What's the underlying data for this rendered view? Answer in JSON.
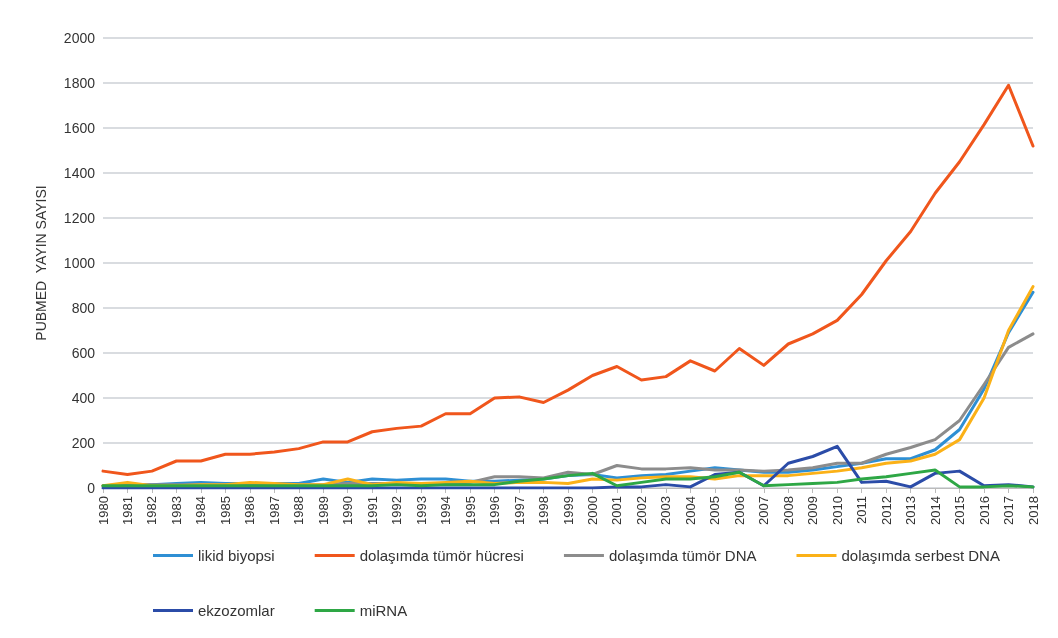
{
  "chart_data": {
    "type": "line",
    "ylabel": "PUBMED  YAYIN SAYISI",
    "categories": [
      "1980",
      "1981",
      "1982",
      "1983",
      "1984",
      "1985",
      "1986",
      "1987",
      "1988",
      "1989",
      "1990",
      "1991",
      "1992",
      "1993",
      "1994",
      "1995",
      "1996",
      "1997",
      "1998",
      "1999",
      "2000",
      "2001",
      "2002",
      "2003",
      "2004",
      "2005",
      "2006",
      "2007",
      "2008",
      "2009",
      "2010",
      "2011",
      "2012",
      "2013",
      "2014",
      "2015",
      "2016",
      "2017",
      "2018"
    ],
    "ylim": [
      0,
      2000
    ],
    "yticks": [
      0,
      200,
      400,
      600,
      800,
      1000,
      1200,
      1400,
      1600,
      1800,
      2000
    ],
    "grid": "y",
    "legend": "bottom",
    "marker": "none",
    "line_style": "solid",
    "series": [
      {
        "name": "likid biyopsi",
        "color": "#2e8fd4",
        "values": [
          10,
          15,
          15,
          20,
          25,
          20,
          20,
          20,
          20,
          40,
          25,
          40,
          35,
          40,
          40,
          30,
          30,
          35,
          40,
          55,
          60,
          45,
          55,
          60,
          75,
          90,
          80,
          70,
          70,
          80,
          95,
          110,
          130,
          130,
          170,
          260,
          440,
          690,
          870
        ]
      },
      {
        "name": "dolaşımda tümör hücresi",
        "color": "#f0561c",
        "values": [
          75,
          60,
          75,
          120,
          120,
          150,
          150,
          160,
          175,
          205,
          205,
          250,
          265,
          275,
          330,
          330,
          400,
          405,
          380,
          435,
          500,
          540,
          480,
          495,
          565,
          520,
          620,
          545,
          640,
          685,
          745,
          860,
          1010,
          1140,
          1310,
          1450,
          1615,
          1790,
          1520
        ]
      },
      {
        "name": "dolaşımda tümör DNA",
        "color": "#8c8c8c",
        "values": [
          10,
          15,
          15,
          15,
          15,
          15,
          15,
          15,
          15,
          15,
          20,
          20,
          20,
          20,
          20,
          25,
          50,
          50,
          45,
          70,
          60,
          100,
          85,
          85,
          90,
          80,
          80,
          75,
          80,
          90,
          110,
          110,
          150,
          180,
          215,
          300,
          460,
          625,
          685
        ]
      },
      {
        "name": "dolaşımda serbest DNA",
        "color": "#fbb117",
        "values": [
          10,
          25,
          10,
          10,
          15,
          15,
          25,
          20,
          15,
          15,
          40,
          15,
          25,
          20,
          25,
          30,
          20,
          25,
          25,
          20,
          40,
          35,
          45,
          50,
          50,
          40,
          55,
          55,
          55,
          65,
          75,
          90,
          110,
          120,
          150,
          215,
          400,
          700,
          895
        ]
      },
      {
        "name": "ekzozomlar",
        "color": "#2b4ca8",
        "values": [
          0,
          0,
          0,
          0,
          0,
          0,
          0,
          0,
          0,
          0,
          0,
          0,
          0,
          0,
          0,
          0,
          0,
          0,
          0,
          0,
          0,
          5,
          5,
          15,
          5,
          60,
          70,
          10,
          110,
          140,
          185,
          25,
          30,
          5,
          65,
          75,
          10,
          15,
          5
        ]
      },
      {
        "name": "miRNA",
        "color": "#2ea745",
        "values": [
          10,
          10,
          10,
          10,
          10,
          10,
          10,
          10,
          10,
          10,
          10,
          10,
          15,
          10,
          15,
          15,
          15,
          30,
          40,
          55,
          65,
          10,
          25,
          40,
          40,
          50,
          70,
          10,
          15,
          20,
          25,
          40,
          50,
          65,
          80,
          5,
          5,
          10,
          5
        ]
      }
    ]
  }
}
